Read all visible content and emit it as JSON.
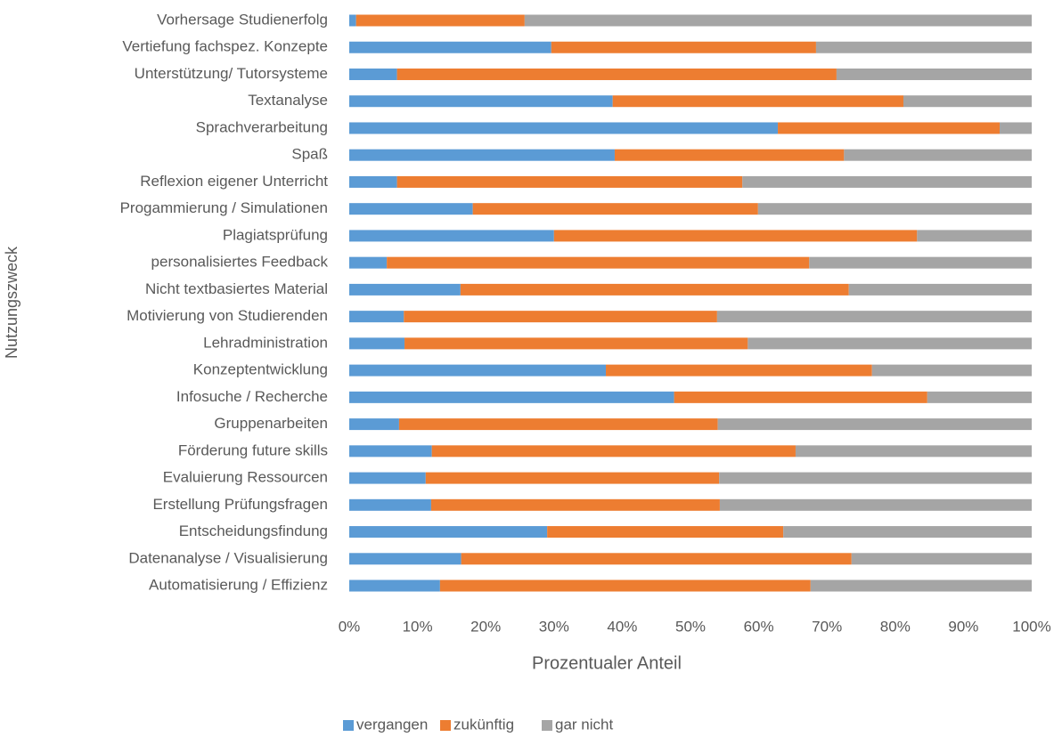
{
  "chart_data": {
    "type": "stacked_bar_horizontal",
    "x_label": "Prozentualer Anteil",
    "y_label": "Nutzungszweck",
    "categories": [
      "Vorhersage Studienerfolg",
      "Vertiefung fachspez. Konzepte",
      "Unterstützung/ Tutorsysteme",
      "Textanalyse",
      "Sprachverarbeitung",
      "Spaß",
      "Reflexion eigener Unterricht",
      "Progammierung / Simulationen",
      "Plagiatsprüfung",
      "personalisiertes Feedback",
      "Nicht textbasiertes Material",
      "Motivierung von Studierenden",
      "Lehradministration",
      "Konzeptentwicklung",
      "Infosuche / Recherche",
      "Gruppenarbeiten",
      "Förderung future skills",
      "Evaluierung Ressourcen",
      "Erstellung Prüfungsfragen",
      "Entscheidungsfindung",
      "Datenanalyse / Visualisierung",
      "Automatisierung / Effizienz"
    ],
    "series": [
      {
        "name": "vergangen",
        "color": "#5b9bd5",
        "values": [
          1.0,
          29.6,
          7.0,
          38.6,
          62.8,
          38.9,
          7.0,
          18.1,
          30.0,
          5.5,
          16.3,
          8.0,
          8.1,
          37.6,
          47.6,
          7.3,
          12.1,
          11.2,
          12.0,
          29.0,
          16.4,
          13.3
        ]
      },
      {
        "name": "zukünftig",
        "color": "#ed7d31",
        "values": [
          24.7,
          38.8,
          64.4,
          42.6,
          32.5,
          33.6,
          50.6,
          41.8,
          53.2,
          61.9,
          56.9,
          45.9,
          50.3,
          39.0,
          37.1,
          46.7,
          53.3,
          43.0,
          42.3,
          34.6,
          57.2,
          54.3
        ]
      },
      {
        "name": "gar nicht",
        "color": "#a5a5a5",
        "values": [
          74.3,
          31.6,
          28.6,
          18.8,
          4.7,
          27.5,
          42.4,
          40.1,
          16.8,
          32.6,
          26.8,
          46.1,
          41.6,
          23.4,
          15.3,
          46.0,
          34.6,
          45.8,
          45.7,
          36.4,
          26.4,
          32.4
        ]
      }
    ],
    "xlim": [
      0,
      100
    ],
    "xticks": [
      {
        "value": 0,
        "label": "0%"
      },
      {
        "value": 10,
        "label": "10%"
      },
      {
        "value": 20,
        "label": "20%"
      },
      {
        "value": 30,
        "label": "30%"
      },
      {
        "value": 40,
        "label": "40%"
      },
      {
        "value": 50,
        "label": "50%"
      },
      {
        "value": 60,
        "label": "60%"
      },
      {
        "value": 70,
        "label": "70%"
      },
      {
        "value": 80,
        "label": "80%"
      },
      {
        "value": 90,
        "label": "90%"
      },
      {
        "value": 100,
        "label": "100%"
      }
    ],
    "grid": false,
    "legend": "bottom"
  }
}
